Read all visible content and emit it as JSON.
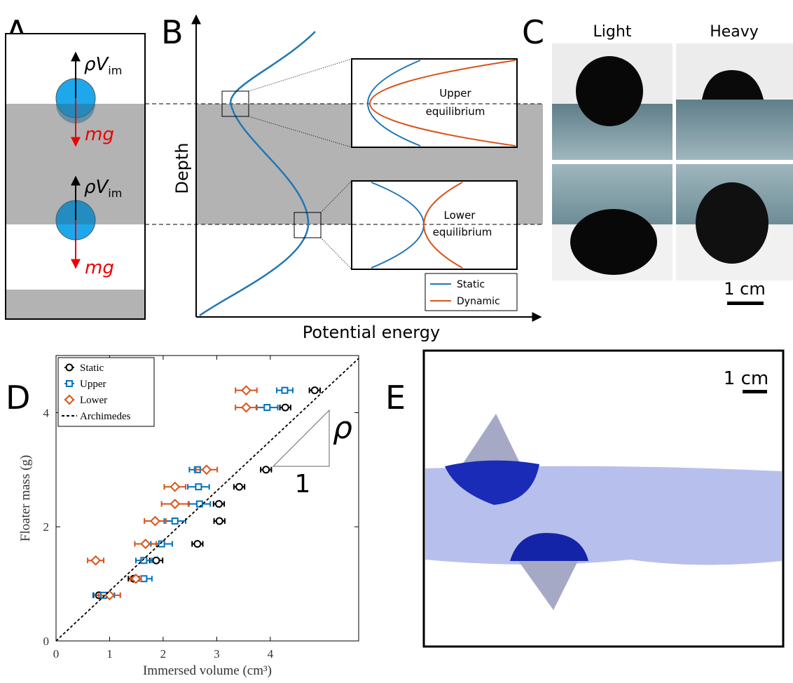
{
  "panel_a": {
    "label": "A",
    "force_up": "ρV",
    "force_up_sub": "im",
    "force_down": "mg"
  },
  "panel_b": {
    "label": "B",
    "y_axis": "Depth",
    "x_axis": "Potential energy",
    "upper_label": [
      "Upper",
      "equilibrium"
    ],
    "lower_label": [
      "Lower",
      "equilibrium"
    ],
    "legend": [
      {
        "name": "Static",
        "color": "#1f77b4"
      },
      {
        "name": "Dynamic",
        "color": "#d95319"
      }
    ]
  },
  "panel_c": {
    "label": "C",
    "columns": [
      "Light",
      "Heavy"
    ],
    "scale": "1 cm"
  },
  "chart_data": {
    "type": "scatter",
    "label": "D",
    "xlabel": "Immersed volume (cm³)",
    "ylabel": "Floater mass (g)",
    "xlim": [
      0,
      5.65
    ],
    "ylim": [
      0,
      5
    ],
    "xticks": [
      0,
      1,
      2,
      3,
      4
    ],
    "yticks": [
      0,
      2,
      4
    ],
    "series": [
      {
        "name": "Static",
        "color": "#000000",
        "marker": "circle",
        "x": [
          4.83,
          4.28,
          3.92,
          3.42,
          3.04,
          3.05,
          2.64,
          1.87,
          1.45,
          0.8
        ],
        "values": [
          4.39,
          4.09,
          3.0,
          2.7,
          2.4,
          2.1,
          1.7,
          1.41,
          1.09,
          0.8
        ],
        "xerr": [
          0.1,
          0.1,
          0.1,
          0.1,
          0.1,
          0.1,
          0.1,
          0.12,
          0.1,
          0.1
        ]
      },
      {
        "name": "Upper",
        "color": "#0072bd",
        "marker": "square",
        "x": [
          4.27,
          3.94,
          2.64,
          2.66,
          2.68,
          2.22,
          1.97,
          1.64,
          1.64,
          0.89
        ],
        "values": [
          4.39,
          4.09,
          3.0,
          2.7,
          2.4,
          2.1,
          1.7,
          1.41,
          1.09,
          0.8
        ],
        "xerr": [
          0.15,
          0.2,
          0.15,
          0.2,
          0.2,
          0.2,
          0.2,
          0.15,
          0.15,
          0.2
        ]
      },
      {
        "name": "Lower",
        "color": "#d95319",
        "marker": "diamond",
        "x": [
          3.55,
          3.55,
          2.81,
          2.22,
          2.22,
          1.85,
          1.67,
          0.74,
          1.49,
          1.0
        ],
        "values": [
          4.39,
          4.09,
          3.0,
          2.7,
          2.4,
          2.1,
          1.7,
          1.41,
          1.09,
          0.8
        ],
        "xerr": [
          0.2,
          0.2,
          0.2,
          0.2,
          0.25,
          0.2,
          0.2,
          0.15,
          0.1,
          0.2
        ]
      },
      {
        "name": "Archimedes",
        "color": "#000000",
        "type": "line",
        "dashed": true,
        "x": [
          0,
          5.65
        ],
        "values": [
          0,
          4.95
        ]
      }
    ],
    "annotations": [
      "ρ",
      "1"
    ]
  },
  "panel_e": {
    "label": "E",
    "scale": "1 cm"
  }
}
